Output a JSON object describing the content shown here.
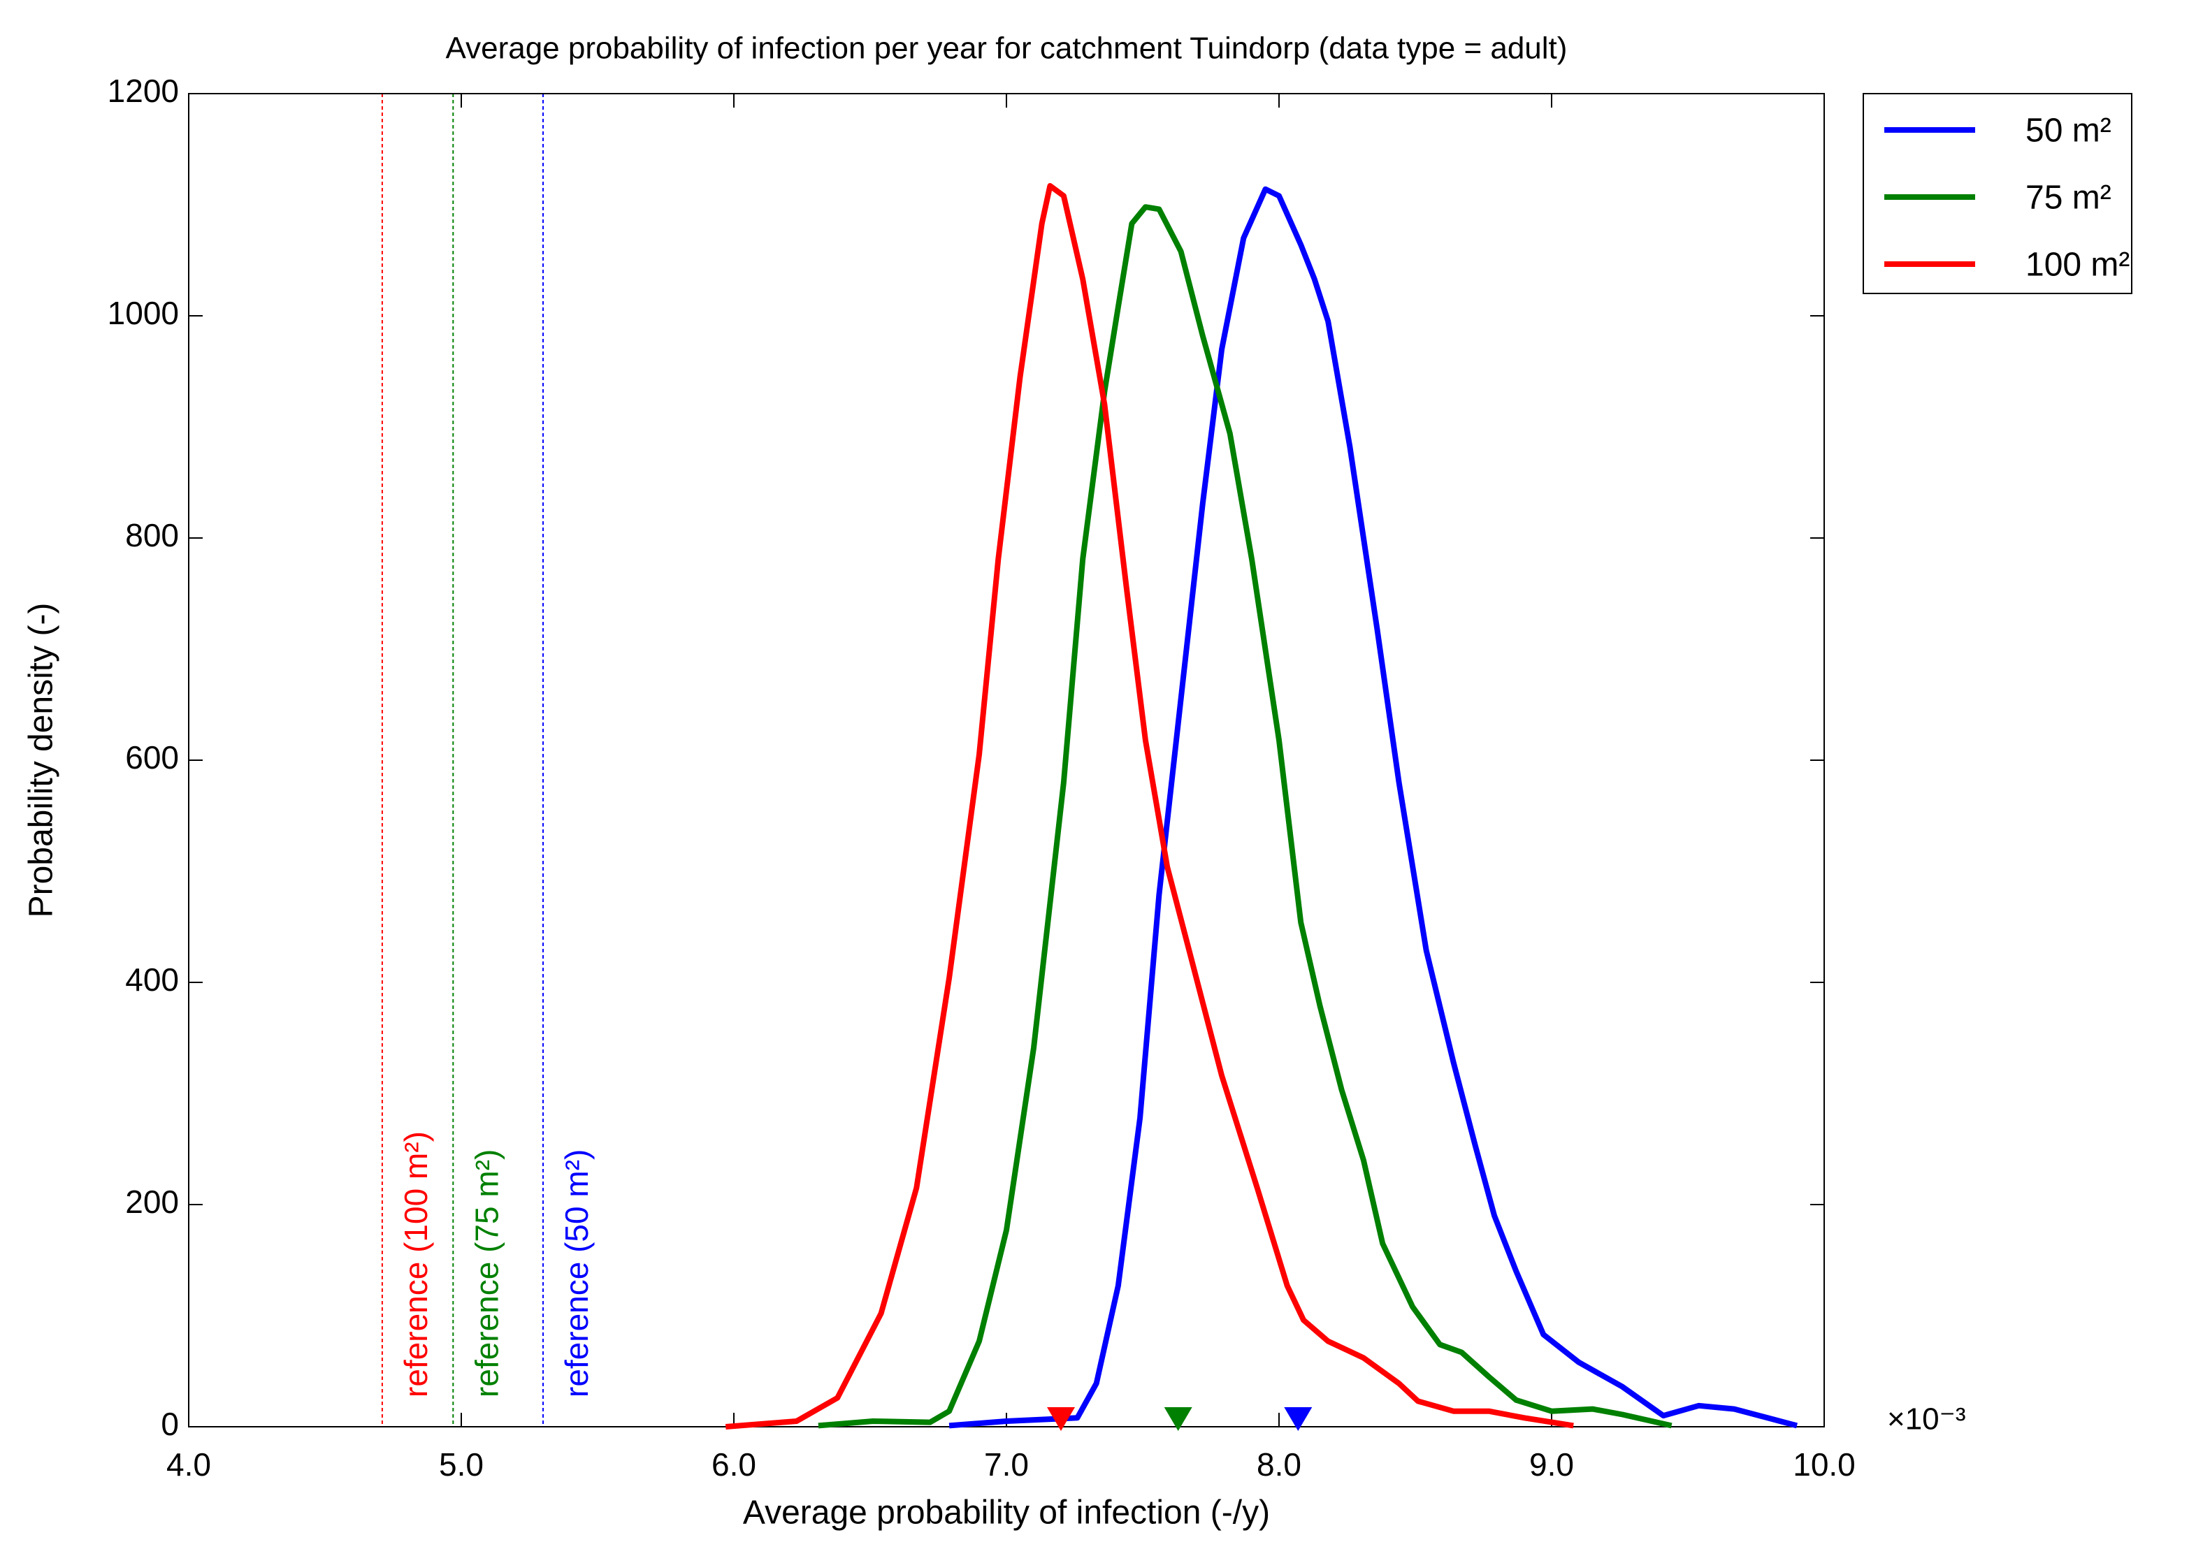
{
  "chart_data": {
    "type": "line",
    "title": "Average probability of infection per year for catchment Tuindorp (data type = adult)",
    "x_label": "Average probability of infection (-/y)",
    "y_label": "Probability density (-)",
    "x_exponent_label": "×10⁻³",
    "xlim": [
      4,
      10
    ],
    "ylim": [
      0,
      1200
    ],
    "xticks": [
      {
        "value": 4,
        "label": "4.0"
      },
      {
        "value": 5,
        "label": "5.0"
      },
      {
        "value": 6,
        "label": "6.0"
      },
      {
        "value": 7,
        "label": "7.0"
      },
      {
        "value": 8,
        "label": "8.0"
      },
      {
        "value": 9,
        "label": "9.0"
      },
      {
        "value": 10,
        "label": "10.0"
      }
    ],
    "yticks": [
      0,
      200,
      400,
      600,
      800,
      1000,
      1200
    ],
    "grid": false,
    "legend_position": "outside-top-right",
    "series": [
      {
        "name": "50 m²",
        "color": "#0000ff",
        "x": [
          6.79,
          7.0,
          7.26,
          7.33,
          7.41,
          7.49,
          7.56,
          7.64,
          7.72,
          7.79,
          7.87,
          7.95,
          8.0,
          8.08,
          8.13,
          8.18,
          8.26,
          8.36,
          8.44,
          8.54,
          8.64,
          8.72,
          8.79,
          8.87,
          8.97,
          9.1,
          9.26,
          9.41,
          9.54,
          9.67,
          9.9
        ],
        "values": [
          1,
          5,
          8,
          39,
          127,
          278,
          479,
          655,
          831,
          970,
          1070,
          1114,
          1108,
          1064,
          1033,
          995,
          882,
          718,
          580,
          429,
          328,
          253,
          190,
          140,
          83,
          58,
          36,
          10,
          19,
          16,
          1
        ]
      },
      {
        "name": "75 m²",
        "color": "#008000",
        "x": [
          6.31,
          6.51,
          6.72,
          6.79,
          6.9,
          7.0,
          7.1,
          7.21,
          7.28,
          7.36,
          7.41,
          7.46,
          7.51,
          7.56,
          7.64,
          7.72,
          7.82,
          7.9,
          8.0,
          8.08,
          8.15,
          8.23,
          8.31,
          8.38,
          8.49,
          8.59,
          8.67,
          8.77,
          8.87,
          9.0,
          9.15,
          9.26,
          9.44
        ],
        "values": [
          1,
          5,
          4,
          14,
          77,
          177,
          341,
          580,
          781,
          932,
          1008,
          1083,
          1098,
          1096,
          1058,
          982,
          894,
          781,
          618,
          454,
          379,
          303,
          240,
          165,
          108,
          74,
          67,
          45,
          24,
          14,
          16,
          11,
          1
        ]
      },
      {
        "name": "100 m²",
        "color": "#ff0000",
        "x": [
          5.97,
          6.23,
          6.38,
          6.54,
          6.67,
          6.79,
          6.9,
          6.97,
          7.05,
          7.13,
          7.16,
          7.21,
          7.28,
          7.36,
          7.44,
          7.51,
          7.59,
          7.67,
          7.79,
          7.92,
          8.03,
          8.09,
          8.18,
          8.31,
          8.44,
          8.51,
          8.64,
          8.77,
          8.9,
          9.08
        ],
        "values": [
          0,
          5,
          26,
          102,
          215,
          404,
          605,
          781,
          945,
          1083,
          1117,
          1108,
          1033,
          920,
          756,
          618,
          504,
          429,
          316,
          215,
          127,
          96,
          77,
          62,
          39,
          23,
          14,
          14,
          8,
          1
        ]
      }
    ],
    "reference_lines": [
      {
        "x": 4.71,
        "color": "#ff0000",
        "label": "reference (100 m²)"
      },
      {
        "x": 4.97,
        "color": "#008000",
        "label": "reference (75 m²)"
      },
      {
        "x": 5.3,
        "color": "#0000ff",
        "label": "reference (50 m²)"
      }
    ],
    "markers": [
      {
        "x": 7.2,
        "y": 0,
        "color": "#ff0000"
      },
      {
        "x": 7.63,
        "y": 0,
        "color": "#008000"
      },
      {
        "x": 8.07,
        "y": 0,
        "color": "#0000ff"
      }
    ]
  }
}
